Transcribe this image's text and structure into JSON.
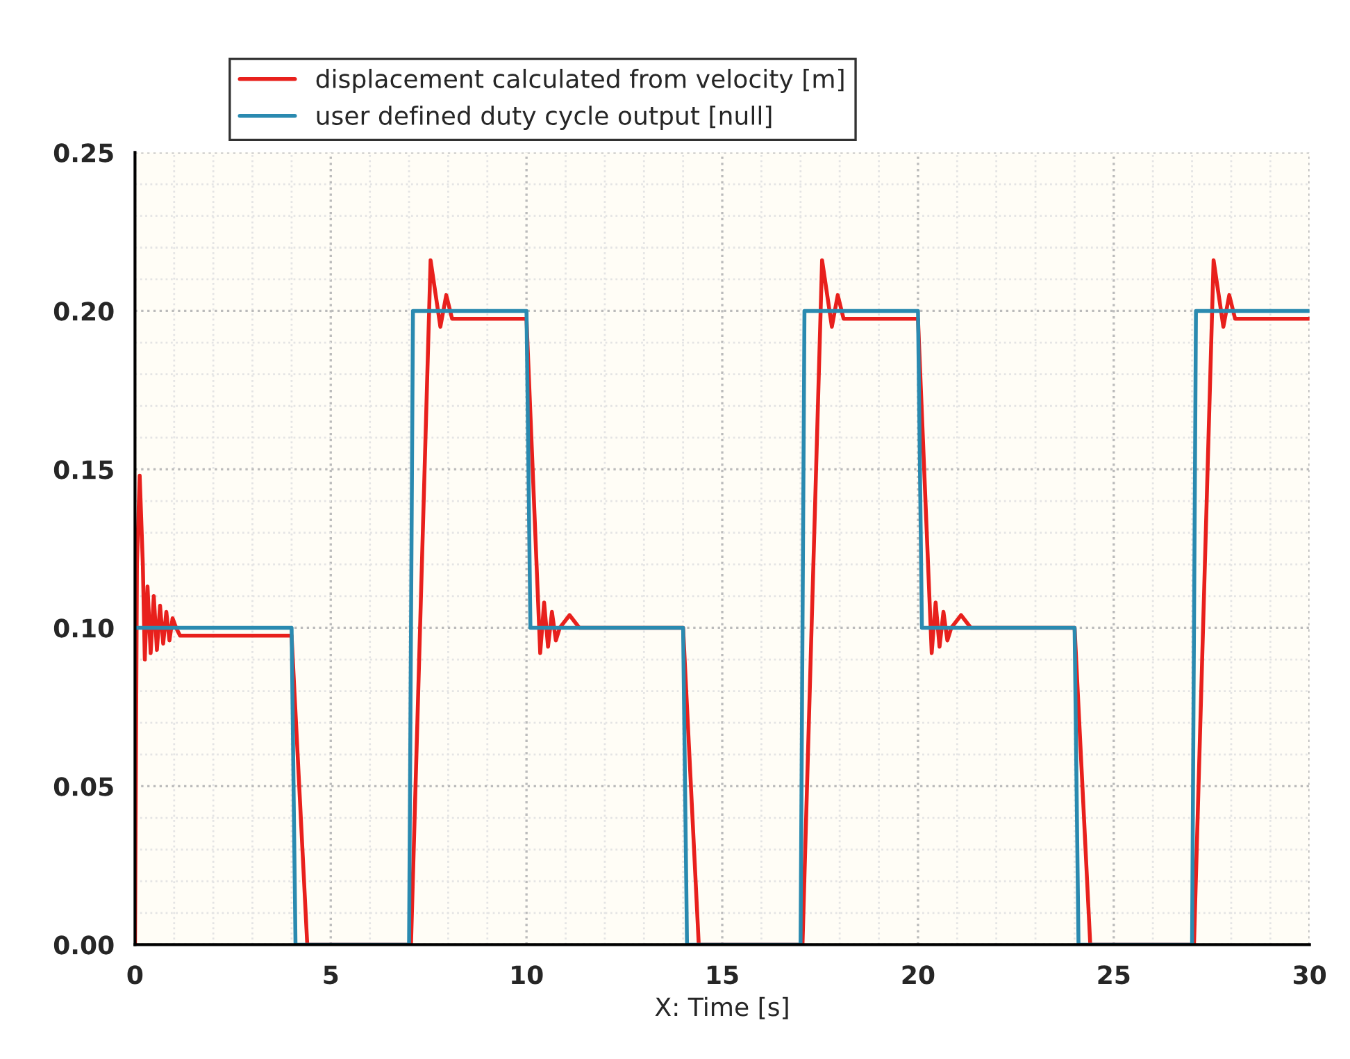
{
  "chart_data": {
    "type": "line",
    "xlabel": "X: Time [s]",
    "xlim": [
      0,
      30
    ],
    "xticks": [
      0,
      5,
      10,
      15,
      20,
      25,
      30
    ],
    "ylim": [
      0,
      0.25
    ],
    "yticks": [
      {
        "value": 0,
        "label": "0.00"
      },
      {
        "value": 0.05,
        "label": "0.05"
      },
      {
        "value": 0.1,
        "label": "0.10"
      },
      {
        "value": 0.15,
        "label": "0.15"
      },
      {
        "value": 0.2,
        "label": "0.20"
      },
      {
        "value": 0.25,
        "label": "0.25"
      }
    ],
    "grid": true,
    "legend": "top left",
    "line_style": "solid",
    "marker": "none",
    "series": [
      {
        "name": "displacement calculated from velocity [m]",
        "color": "#e8201c",
        "x": [
          0,
          0.05,
          0.12,
          0.2,
          0.25,
          0.32,
          0.4,
          0.48,
          0.56,
          0.64,
          0.72,
          0.8,
          0.88,
          0.96,
          1.05,
          1.15,
          4.0,
          4.4,
          7.05,
          7.55,
          7.8,
          7.95,
          8.1,
          10.0,
          10.35,
          10.45,
          10.55,
          10.65,
          10.75,
          10.85,
          11.1,
          11.35,
          14.0,
          14.4,
          17.05,
          17.55,
          17.8,
          17.95,
          18.1,
          20.0,
          20.35,
          20.45,
          20.55,
          20.65,
          20.75,
          20.85,
          21.1,
          21.35,
          24.0,
          24.4,
          27.05,
          27.55,
          27.8,
          27.95,
          28.1,
          30.0
        ],
        "values": [
          0,
          0.12,
          0.148,
          0.12,
          0.09,
          0.113,
          0.092,
          0.11,
          0.093,
          0.107,
          0.095,
          0.105,
          0.096,
          0.103,
          0.1,
          0.0975,
          0.0975,
          0,
          0,
          0.216,
          0.195,
          0.205,
          0.1975,
          0.1975,
          0.092,
          0.108,
          0.094,
          0.105,
          0.096,
          0.1,
          0.104,
          0.1,
          0.1,
          0,
          0,
          0.216,
          0.195,
          0.205,
          0.1975,
          0.1975,
          0.092,
          0.108,
          0.094,
          0.105,
          0.096,
          0.1,
          0.104,
          0.1,
          0.1,
          0,
          0,
          0.216,
          0.195,
          0.205,
          0.1975,
          0.1975
        ]
      },
      {
        "name": "user defined duty cycle output [null]",
        "color": "#2a8ab0",
        "x": [
          0,
          4.0,
          4.1,
          7.0,
          7.1,
          10.0,
          10.1,
          14.0,
          14.1,
          17.0,
          17.1,
          20.0,
          20.1,
          24.0,
          24.1,
          27.0,
          27.1,
          30.0
        ],
        "values": [
          0.1,
          0.1,
          0,
          0,
          0.2,
          0.2,
          0.1,
          0.1,
          0,
          0,
          0.2,
          0.2,
          0.1,
          0.1,
          0,
          0,
          0.2,
          0.2
        ]
      }
    ]
  }
}
